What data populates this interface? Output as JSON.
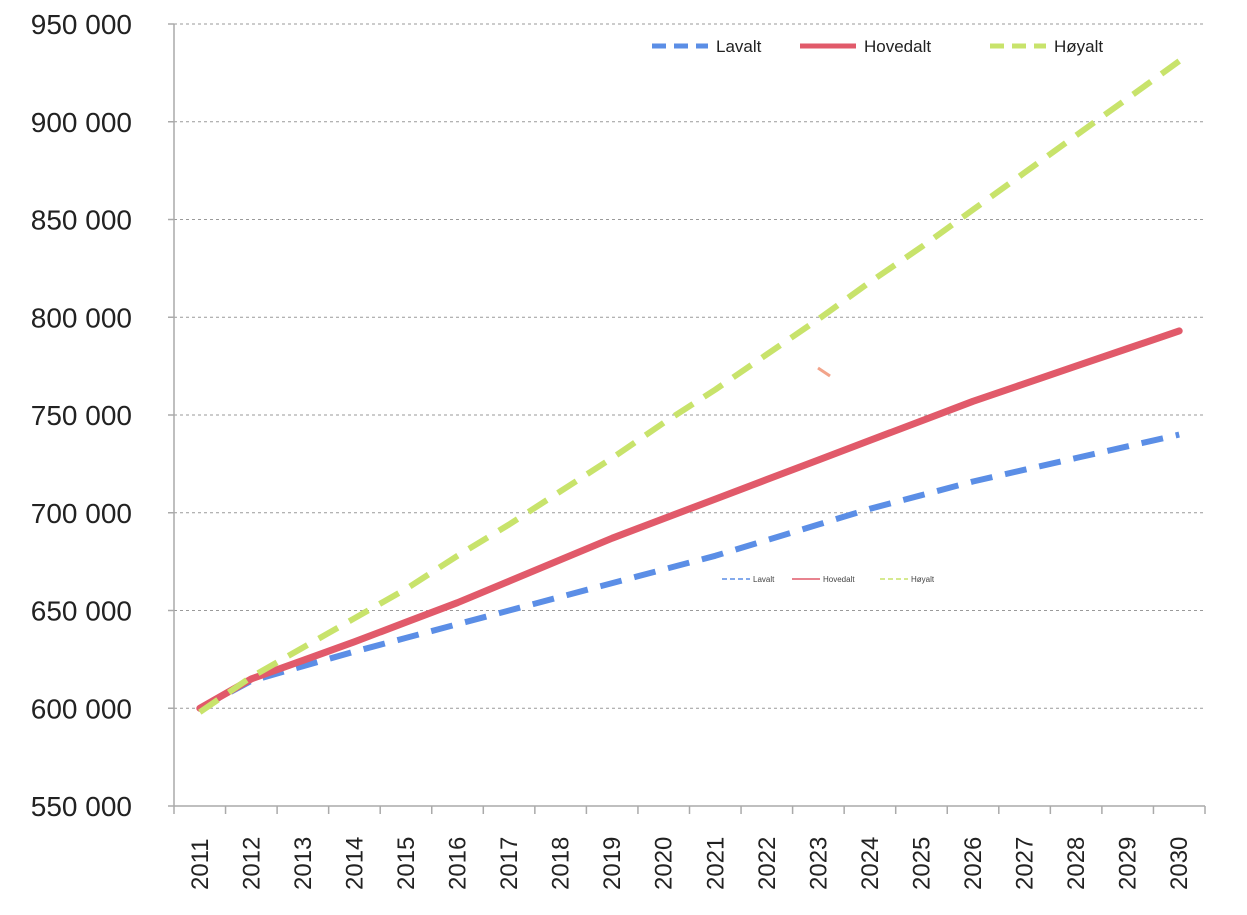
{
  "chart_data": {
    "type": "line",
    "title": "",
    "xlabel": "",
    "ylabel": "",
    "x": [
      "2011",
      "2012",
      "2013",
      "2014",
      "2015",
      "2016",
      "2017",
      "2018",
      "2019",
      "2020",
      "2021",
      "2022",
      "2023",
      "2024",
      "2025",
      "2026",
      "2027",
      "2028",
      "2029",
      "2030"
    ],
    "ylim": [
      550000,
      950000
    ],
    "yticks": [
      "550 000",
      "600 000",
      "650 000",
      "700 000",
      "750 000",
      "800 000",
      "850 000",
      "900 000",
      "950 000"
    ],
    "grid": true,
    "legend_position": "top-right",
    "series": [
      {
        "name": "Lavalt",
        "color": "#5b8ee6",
        "style": "dashed",
        "values": [
          600000,
          614000,
          621500,
          629000,
          636000,
          643000,
          650000,
          657000,
          664000,
          671000,
          678000,
          686000,
          694000,
          702000,
          709000,
          716000,
          722000,
          728000,
          734000,
          740000
        ]
      },
      {
        "name": "Hovedalt",
        "color": "#e15a6a",
        "style": "solid",
        "values": [
          600000,
          615000,
          624500,
          634000,
          644000,
          654000,
          665000,
          676000,
          687000,
          697000,
          707000,
          717000,
          727000,
          737000,
          747000,
          757000,
          766000,
          775000,
          784000,
          793000
        ]
      },
      {
        "name": "Høyalt",
        "color": "#c8e36b",
        "style": "dashed",
        "values": [
          598000,
          616000,
          631000,
          646000,
          661000,
          678000,
          694000,
          711000,
          728000,
          746000,
          763000,
          781000,
          799000,
          818000,
          836000,
          855000,
          874000,
          893000,
          912000,
          931000
        ]
      }
    ]
  }
}
